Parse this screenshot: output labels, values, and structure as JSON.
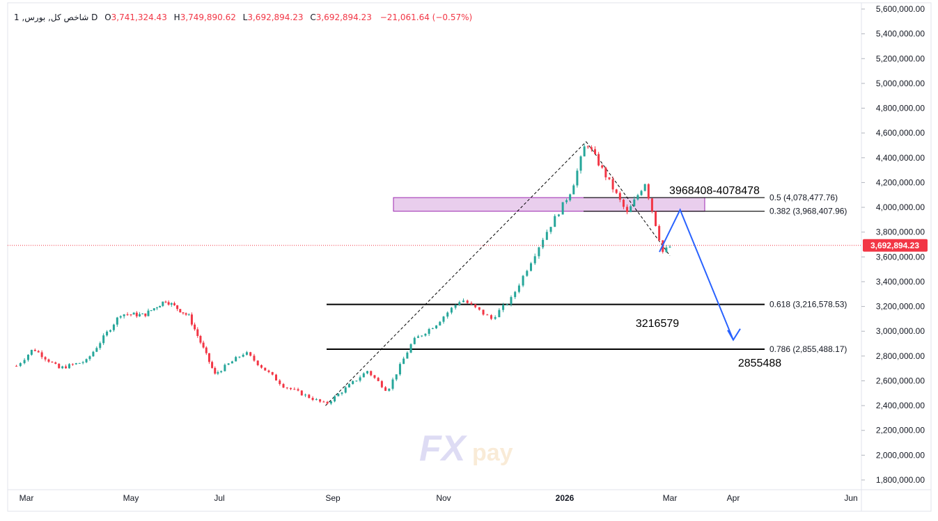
{
  "legend": {
    "symbol": "1 ,شاخص کل, بورس D",
    "open_key": "O",
    "open": "3,741,324.43",
    "high_key": "H",
    "high": "3,749,890.62",
    "low_key": "L",
    "low": "3,692,894.23",
    "close_key": "C",
    "close": "3,692,894.23",
    "change": "−21,061.64 (−0.57%)"
  },
  "watermark": {
    "text_fx": "FX",
    "text_pay": "pay"
  },
  "colors": {
    "up": "#26a69a",
    "down": "#f23645",
    "zone": "#e1bee7",
    "arrow": "#2962ff",
    "price_line": "#f23645"
  },
  "chart_data": {
    "type": "candlestick",
    "y_axis": {
      "ticks": [
        "5,600,000.00",
        "5,400,000.00",
        "5,200,000.00",
        "5,000,000.00",
        "4,800,000.00",
        "4,600,000.00",
        "4,400,000.00",
        "4,200,000.00",
        "4,000,000.00",
        "3,800,000.00",
        "3,600,000.00",
        "3,400,000.00",
        "3,200,000.00",
        "3,000,000.00",
        "2,800,000.00",
        "2,600,000.00",
        "2,400,000.00",
        "2,200,000.00",
        "2,000,000.00",
        "1,800,000.00"
      ],
      "tick_values": [
        5600000,
        5400000,
        5200000,
        5000000,
        4800000,
        4600000,
        4400000,
        4200000,
        4000000,
        3800000,
        3600000,
        3400000,
        3200000,
        3000000,
        2800000,
        2600000,
        2400000,
        2200000,
        2000000,
        1800000
      ],
      "range": [
        1720000,
        5640000
      ]
    },
    "x_axis": {
      "labels": [
        "Mar",
        "May",
        "Jul",
        "Sep",
        "Nov",
        "2026",
        "Mar",
        "Apr",
        "Jun"
      ],
      "bold": [
        false,
        false,
        false,
        false,
        false,
        true,
        false,
        false,
        false
      ]
    },
    "last_price": {
      "value": 3692894.23,
      "label": "3,692,894.23"
    },
    "series_close_approx": [
      {
        "x": "2025-02-24",
        "y": 2720000
      },
      {
        "x": "2025-03-05",
        "y": 2860000
      },
      {
        "x": "2025-03-20",
        "y": 2700000
      },
      {
        "x": "2025-04-05",
        "y": 2760000
      },
      {
        "x": "2025-04-25",
        "y": 3140000
      },
      {
        "x": "2025-05-10",
        "y": 3130000
      },
      {
        "x": "2025-05-25",
        "y": 3250000
      },
      {
        "x": "2025-06-10",
        "y": 3120000
      },
      {
        "x": "2025-06-28",
        "y": 2650000
      },
      {
        "x": "2025-07-15",
        "y": 2830000
      },
      {
        "x": "2025-08-05",
        "y": 2560000
      },
      {
        "x": "2025-08-28",
        "y": 2410000
      },
      {
        "x": "2025-09-20",
        "y": 2680000
      },
      {
        "x": "2025-10-01",
        "y": 2520000
      },
      {
        "x": "2025-10-15",
        "y": 2920000
      },
      {
        "x": "2025-10-28",
        "y": 3060000
      },
      {
        "x": "2025-11-10",
        "y": 3260000
      },
      {
        "x": "2025-11-25",
        "y": 3100000
      },
      {
        "x": "2025-12-05",
        "y": 3260000
      },
      {
        "x": "2025-12-22",
        "y": 3780000
      },
      {
        "x": "2026-01-05",
        "y": 4150000
      },
      {
        "x": "2026-01-13",
        "y": 4530000
      },
      {
        "x": "2026-01-25",
        "y": 4230000
      },
      {
        "x": "2026-02-05",
        "y": 3950000
      },
      {
        "x": "2026-02-15",
        "y": 4200000
      },
      {
        "x": "2026-02-25",
        "y": 3640000
      },
      {
        "x": "2026-03-02",
        "y": 3692894
      }
    ],
    "fibonacci": [
      {
        "level": "0.5",
        "label": "0.5 (4,078,477.76)",
        "value": 4078477.76
      },
      {
        "level": "0.382",
        "label": "0.382 (3,968,407.96)",
        "value": 3968407.96
      },
      {
        "level": "0.618",
        "label": "0.618 (3,216,578.53)",
        "value": 3216578.53
      },
      {
        "level": "0.786",
        "label": "0.786 (2,855,488.17)",
        "value": 2855488.17
      }
    ],
    "zone": {
      "from": 3968408,
      "to": 4078478
    },
    "annotations": [
      {
        "text": "3968408-4078478"
      },
      {
        "text": "3216579"
      },
      {
        "text": "2855488"
      }
    ],
    "trend_lines": [
      {
        "from": {
          "x": "2025-08-28",
          "y": 2400000
        },
        "to": {
          "x": "2026-01-13",
          "y": 4530000
        }
      },
      {
        "from": {
          "x": "2026-01-13",
          "y": 4530000
        },
        "to": {
          "x": "2026-03-01",
          "y": 3610000
        }
      }
    ],
    "projection": [
      {
        "x": "2026-03-06",
        "y": 3980000
      },
      {
        "x": "2026-04-01",
        "y": 2930000
      }
    ]
  }
}
